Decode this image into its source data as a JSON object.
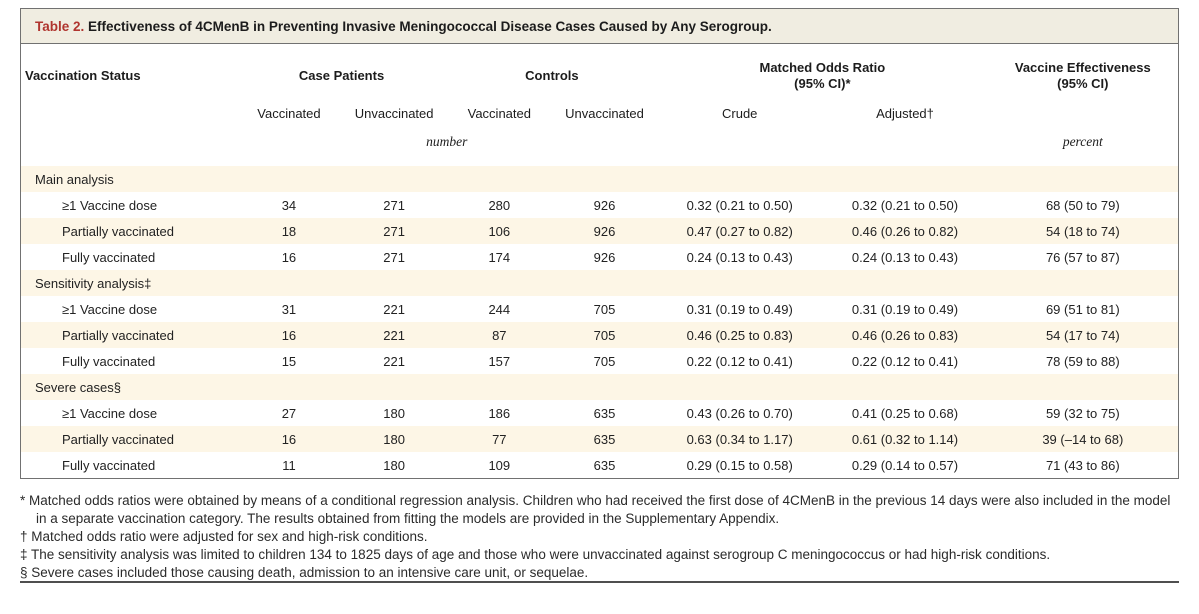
{
  "table": {
    "label": "Table 2.",
    "title": "Effectiveness of 4CMenB in Preventing Invasive Meningococcal Disease Cases Caused by Any Serogroup.",
    "accent_color": "#b0352f",
    "row_shade_color": "#fdf6e6",
    "title_bar_color": "#f0ede1",
    "header": {
      "status": "Vaccination Status",
      "group_case_patients": "Case Patients",
      "group_controls": "Controls",
      "group_mor_line1": "Matched Odds Ratio",
      "group_mor_line2": "(95% CI)*",
      "group_ve_line1": "Vaccine Effectiveness",
      "group_ve_line2": "(95% CI)",
      "sub_case_vaccinated": "Vaccinated",
      "sub_case_unvaccinated": "Unvaccinated",
      "sub_controls_vaccinated": "Vaccinated",
      "sub_controls_unvaccinated": "Unvaccinated",
      "sub_crude": "Crude",
      "sub_adjusted": "Adjusted†",
      "unit_number": "number",
      "unit_percent": "percent"
    },
    "rows": [
      {
        "type": "section",
        "label": "Main analysis"
      },
      {
        "type": "data",
        "label": "≥1 Vaccine dose",
        "cells": [
          "34",
          "271",
          "280",
          "926",
          "0.32 (0.21 to 0.50)",
          "0.32 (0.21 to 0.50)",
          "68 (50 to 79)"
        ]
      },
      {
        "type": "data",
        "label": "Partially vaccinated",
        "cells": [
          "18",
          "271",
          "106",
          "926",
          "0.47 (0.27 to 0.82)",
          "0.46 (0.26 to 0.82)",
          "54 (18 to 74)"
        ]
      },
      {
        "type": "data",
        "label": "Fully vaccinated",
        "cells": [
          "16",
          "271",
          "174",
          "926",
          "0.24 (0.13 to 0.43)",
          "0.24 (0.13 to 0.43)",
          "76 (57 to 87)"
        ]
      },
      {
        "type": "section",
        "label": "Sensitivity analysis‡"
      },
      {
        "type": "data",
        "label": "≥1 Vaccine dose",
        "cells": [
          "31",
          "221",
          "244",
          "705",
          "0.31 (0.19 to 0.49)",
          "0.31 (0.19 to 0.49)",
          "69 (51 to 81)"
        ]
      },
      {
        "type": "data",
        "label": "Partially vaccinated",
        "cells": [
          "16",
          "221",
          "87",
          "705",
          "0.46 (0.25 to 0.83)",
          "0.46 (0.26 to 0.83)",
          "54 (17 to 74)"
        ]
      },
      {
        "type": "data",
        "label": "Fully vaccinated",
        "cells": [
          "15",
          "221",
          "157",
          "705",
          "0.22 (0.12 to 0.41)",
          "0.22 (0.12 to 0.41)",
          "78 (59 to 88)"
        ]
      },
      {
        "type": "section",
        "label": "Severe cases§"
      },
      {
        "type": "data",
        "label": "≥1 Vaccine dose",
        "cells": [
          "27",
          "180",
          "186",
          "635",
          "0.43 (0.26 to 0.70)",
          "0.41 (0.25 to 0.68)",
          "59 (32 to 75)"
        ]
      },
      {
        "type": "data",
        "label": "Partially vaccinated",
        "cells": [
          "16",
          "180",
          "77",
          "635",
          "0.63 (0.34 to 1.17)",
          "0.61 (0.32 to 1.14)",
          "39 (–14 to 68)"
        ]
      },
      {
        "type": "data",
        "label": "Fully vaccinated",
        "cells": [
          "11",
          "180",
          "109",
          "635",
          "0.29 (0.15 to 0.58)",
          "0.29 (0.14 to 0.57)",
          "71 (43 to 86)"
        ]
      }
    ],
    "footnotes": [
      {
        "marker": "*",
        "text": "Matched odds ratios were obtained by means of a conditional regression analysis. Children who had received the first dose of 4CMenB in the previous 14 days were also included in the model in a separate vaccination category. The results obtained from fitting the models are provided in the Supplementary Appendix."
      },
      {
        "marker": "†",
        "text": "Matched odds ratio were adjusted for sex and high-risk conditions."
      },
      {
        "marker": "‡",
        "text": "The sensitivity analysis was limited to children 134 to 1825 days of age and those who were unvaccinated against serogroup C meningococcus or had high-risk conditions."
      },
      {
        "marker": "§",
        "text": "Severe cases included those causing death, admission to an intensive care unit, or sequelae."
      }
    ]
  }
}
